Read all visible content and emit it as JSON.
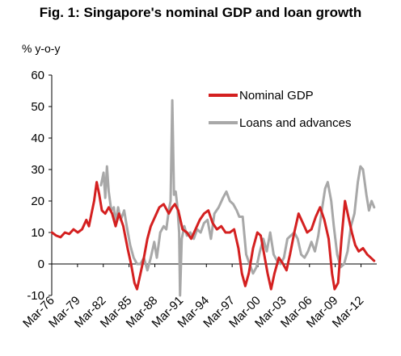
{
  "chart_data": {
    "type": "line",
    "title": "Fig. 1: Singapore's nominal GDP and loan growth",
    "ylabel": "% y-o-y",
    "xlabel": "",
    "ylim": [
      -10,
      60
    ],
    "yticks": [
      60,
      50,
      40,
      30,
      20,
      10,
      0,
      -10
    ],
    "xrange": [
      1976.17,
      2014.0
    ],
    "xtick_labels": [
      "Mar-76",
      "Mar-79",
      "Mar-82",
      "Mar-85",
      "Mar-88",
      "Mar-91",
      "Mar-94",
      "Mar-97",
      "Mar-00",
      "Mar-03",
      "Mar-06",
      "Mar-09",
      "Mar-12"
    ],
    "xtick_years": [
      1976.17,
      1979.17,
      1982.17,
      1985.17,
      1988.17,
      1991.17,
      1994.17,
      1997.17,
      2000.17,
      2003.17,
      2006.17,
      2009.17,
      2012.17
    ],
    "grid": false,
    "legend_position": "top-right",
    "series": [
      {
        "name": "Nominal GDP",
        "color": "#d42020",
        "points": [
          [
            1976.2,
            10
          ],
          [
            1976.7,
            9
          ],
          [
            1977.2,
            8.5
          ],
          [
            1977.7,
            10
          ],
          [
            1978.2,
            9.5
          ],
          [
            1978.7,
            11
          ],
          [
            1979.2,
            10
          ],
          [
            1979.7,
            11
          ],
          [
            1980.2,
            14
          ],
          [
            1980.5,
            12
          ],
          [
            1980.8,
            16
          ],
          [
            1981.1,
            20
          ],
          [
            1981.4,
            26
          ],
          [
            1981.7,
            22
          ],
          [
            1982.0,
            17
          ],
          [
            1982.4,
            16
          ],
          [
            1982.8,
            18
          ],
          [
            1983.2,
            16
          ],
          [
            1983.6,
            12
          ],
          [
            1984.0,
            16
          ],
          [
            1984.5,
            12
          ],
          [
            1985.0,
            5
          ],
          [
            1985.4,
            0
          ],
          [
            1985.8,
            -6
          ],
          [
            1986.1,
            -8
          ],
          [
            1986.5,
            -3
          ],
          [
            1986.9,
            2
          ],
          [
            1987.3,
            8
          ],
          [
            1987.7,
            12
          ],
          [
            1988.2,
            15
          ],
          [
            1988.7,
            18
          ],
          [
            1989.2,
            19
          ],
          [
            1989.8,
            16
          ],
          [
            1990.2,
            18
          ],
          [
            1990.5,
            19
          ],
          [
            1990.9,
            17
          ],
          [
            1991.4,
            11
          ],
          [
            1991.9,
            10
          ],
          [
            1992.4,
            8
          ],
          [
            1992.9,
            11
          ],
          [
            1993.4,
            14
          ],
          [
            1993.9,
            16
          ],
          [
            1994.4,
            17
          ],
          [
            1994.9,
            13
          ],
          [
            1995.4,
            11
          ],
          [
            1995.9,
            12
          ],
          [
            1996.4,
            10
          ],
          [
            1996.9,
            10
          ],
          [
            1997.4,
            11
          ],
          [
            1997.9,
            5
          ],
          [
            1998.3,
            -3
          ],
          [
            1998.7,
            -7
          ],
          [
            1999.1,
            -3
          ],
          [
            1999.6,
            5
          ],
          [
            2000.1,
            10
          ],
          [
            2000.5,
            9
          ],
          [
            2000.9,
            3
          ],
          [
            2001.3,
            -3
          ],
          [
            2001.7,
            -8
          ],
          [
            2002.1,
            -3
          ],
          [
            2002.6,
            2
          ],
          [
            2003.1,
            0
          ],
          [
            2003.5,
            -2
          ],
          [
            2003.9,
            3
          ],
          [
            2004.4,
            10
          ],
          [
            2004.9,
            16
          ],
          [
            2005.4,
            13
          ],
          [
            2005.9,
            10
          ],
          [
            2006.4,
            11
          ],
          [
            2006.9,
            15
          ],
          [
            2007.4,
            18
          ],
          [
            2007.9,
            14
          ],
          [
            2008.4,
            8
          ],
          [
            2008.8,
            -3
          ],
          [
            2009.1,
            -8
          ],
          [
            2009.5,
            -6
          ],
          [
            2009.9,
            8
          ],
          [
            2010.3,
            20
          ],
          [
            2010.7,
            15
          ],
          [
            2011.1,
            10
          ],
          [
            2011.5,
            6
          ],
          [
            2011.9,
            4
          ],
          [
            2012.4,
            5
          ],
          [
            2012.9,
            3
          ],
          [
            2013.3,
            2
          ],
          [
            2013.7,
            1
          ]
        ]
      },
      {
        "name": "Loans and advances",
        "color": "#a8a8a8",
        "points": [
          [
            1981.9,
            25
          ],
          [
            1982.2,
            29
          ],
          [
            1982.4,
            21
          ],
          [
            1982.6,
            31
          ],
          [
            1982.8,
            23
          ],
          [
            1983.1,
            17
          ],
          [
            1983.4,
            18
          ],
          [
            1983.6,
            13
          ],
          [
            1983.9,
            18
          ],
          [
            1984.2,
            14
          ],
          [
            1984.6,
            17
          ],
          [
            1984.9,
            12
          ],
          [
            1985.3,
            6
          ],
          [
            1985.7,
            2
          ],
          [
            1986.1,
            0
          ],
          [
            1986.5,
            0
          ],
          [
            1986.9,
            2
          ],
          [
            1987.3,
            -2
          ],
          [
            1987.7,
            2
          ],
          [
            1988.1,
            7
          ],
          [
            1988.4,
            2
          ],
          [
            1988.8,
            10
          ],
          [
            1989.2,
            12
          ],
          [
            1989.5,
            11
          ],
          [
            1989.8,
            17
          ],
          [
            1990.0,
            20
          ],
          [
            1990.2,
            52
          ],
          [
            1990.4,
            22
          ],
          [
            1990.6,
            23
          ],
          [
            1990.8,
            18
          ],
          [
            1991.0,
            10
          ],
          [
            1991.1,
            -10
          ],
          [
            1991.3,
            8
          ],
          [
            1991.6,
            12
          ],
          [
            1991.9,
            9
          ],
          [
            1992.3,
            10
          ],
          [
            1992.7,
            8
          ],
          [
            1993.1,
            11
          ],
          [
            1993.5,
            10
          ],
          [
            1993.9,
            13
          ],
          [
            1994.3,
            14
          ],
          [
            1994.7,
            8
          ],
          [
            1995.1,
            16
          ],
          [
            1995.6,
            18
          ],
          [
            1996.1,
            21
          ],
          [
            1996.5,
            23
          ],
          [
            1996.9,
            20
          ],
          [
            1997.3,
            19
          ],
          [
            1997.7,
            17
          ],
          [
            1998.0,
            15
          ],
          [
            1998.4,
            15
          ],
          [
            1998.8,
            3
          ],
          [
            1999.2,
            0
          ],
          [
            1999.6,
            -3
          ],
          [
            2000.0,
            -1
          ],
          [
            2000.4,
            4
          ],
          [
            2000.8,
            8
          ],
          [
            2001.2,
            4
          ],
          [
            2001.6,
            10
          ],
          [
            2002.0,
            3
          ],
          [
            2002.4,
            1
          ],
          [
            2002.8,
            0
          ],
          [
            2003.2,
            2
          ],
          [
            2003.6,
            8
          ],
          [
            2004.0,
            9
          ],
          [
            2004.4,
            10
          ],
          [
            2004.8,
            8
          ],
          [
            2005.2,
            3
          ],
          [
            2005.6,
            2
          ],
          [
            2006.0,
            4
          ],
          [
            2006.4,
            7
          ],
          [
            2006.8,
            4
          ],
          [
            2007.2,
            9
          ],
          [
            2007.6,
            17
          ],
          [
            2008.0,
            24
          ],
          [
            2008.3,
            26
          ],
          [
            2008.7,
            20
          ],
          [
            2009.0,
            12
          ],
          [
            2009.4,
            3
          ],
          [
            2009.8,
            -1
          ],
          [
            2010.2,
            0
          ],
          [
            2010.6,
            4
          ],
          [
            2011.0,
            12
          ],
          [
            2011.4,
            16
          ],
          [
            2011.8,
            26
          ],
          [
            2012.1,
            31
          ],
          [
            2012.4,
            30
          ],
          [
            2012.8,
            22
          ],
          [
            2013.1,
            17
          ],
          [
            2013.4,
            20
          ],
          [
            2013.7,
            18
          ]
        ]
      }
    ]
  },
  "colors": {
    "axis": "#000000",
    "background": "#ffffff"
  }
}
